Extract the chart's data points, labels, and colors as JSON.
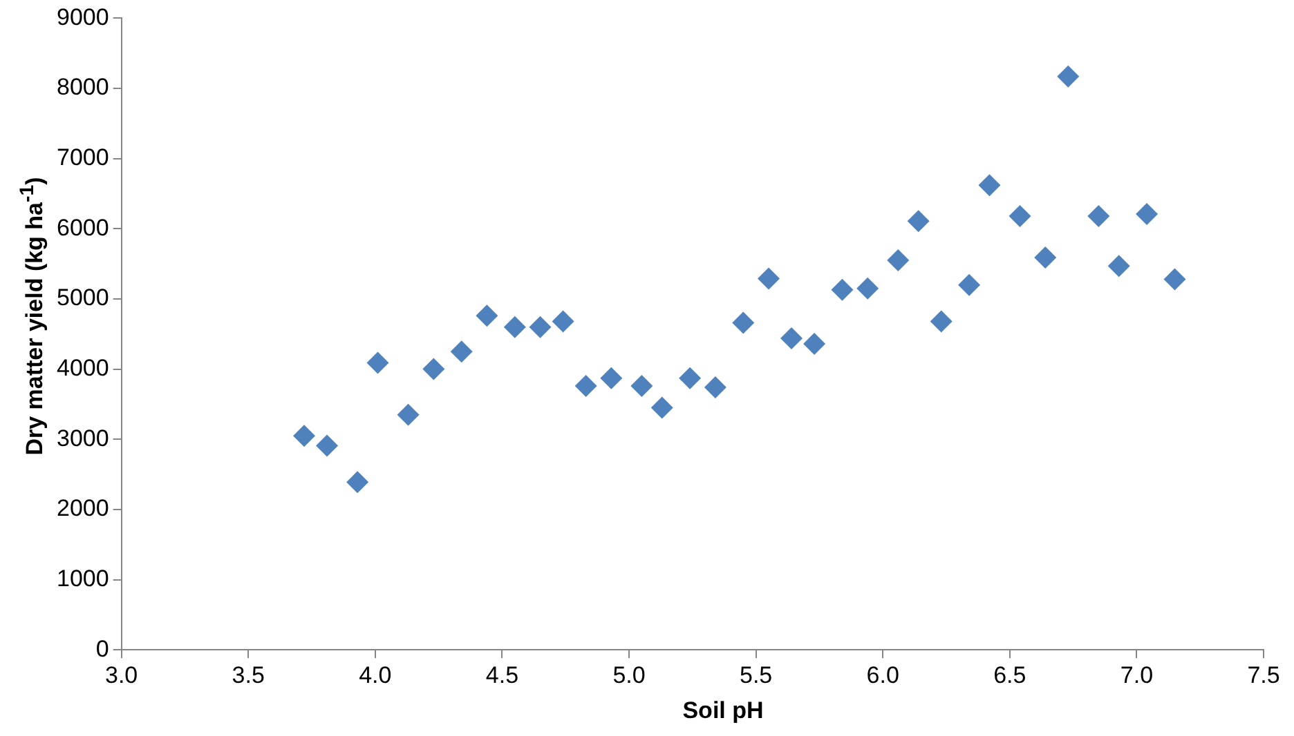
{
  "chart_data": {
    "type": "scatter",
    "xlabel": "Soil pH",
    "ylabel": "Dry matter yield (kg ha$^{-1}$)",
    "marker": "diamond",
    "grid": false,
    "legend": false,
    "xlim": [
      3.0,
      7.5
    ],
    "xticks": [
      {
        "value": 3.0,
        "label": "3.0"
      },
      {
        "value": 3.5,
        "label": "3.5"
      },
      {
        "value": 4.0,
        "label": "4.0"
      },
      {
        "value": 4.5,
        "label": "4.5"
      },
      {
        "value": 5.0,
        "label": "5.0"
      },
      {
        "value": 5.5,
        "label": "5.5"
      },
      {
        "value": 6.0,
        "label": "6.0"
      },
      {
        "value": 6.5,
        "label": "6.5"
      },
      {
        "value": 7.0,
        "label": "7.0"
      },
      {
        "value": 7.5,
        "label": "7.5"
      }
    ],
    "ylim": [
      0,
      9000
    ],
    "yticks": [
      0,
      1000,
      2000,
      3000,
      4000,
      5000,
      6000,
      7000,
      8000,
      9000
    ],
    "series": [
      {
        "color": "#4f81bd",
        "x": [
          3.72,
          3.81,
          3.93,
          4.01,
          4.13,
          4.23,
          4.34,
          4.44,
          4.55,
          4.65,
          4.74,
          4.83,
          4.93,
          5.05,
          5.13,
          5.24,
          5.34,
          5.45,
          5.55,
          5.64,
          5.73,
          5.84,
          5.94,
          6.06,
          6.14,
          6.23,
          6.34,
          6.42,
          6.54,
          6.64,
          6.73,
          6.85,
          6.93,
          7.04,
          7.15
        ],
        "values": [
          3050,
          2910,
          2390,
          4090,
          3350,
          4000,
          4250,
          4760,
          4600,
          4600,
          4680,
          3760,
          3870,
          3760,
          3450,
          3870,
          3740,
          4660,
          5290,
          4440,
          4360,
          5130,
          5150,
          5550,
          6110,
          4680,
          5200,
          6620,
          6180,
          5590,
          8170,
          6180,
          5470,
          6210,
          5280
        ]
      }
    ]
  }
}
